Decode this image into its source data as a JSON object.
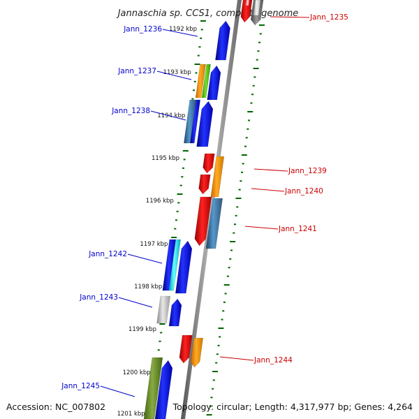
{
  "title": "Jannaschia sp. CCS1, complete genome",
  "footer": {
    "accession": "Accession: NC_007802",
    "summary": "Topology: circular; Length: 4,317,977 bp; Genes: 4,264"
  },
  "colors": {
    "forward_label": "#0000cc",
    "reverse_label": "#cc0000",
    "tick": "#006600",
    "backbone": "#888888"
  },
  "ticks": [
    {
      "kbp": 1192,
      "label": "1192 kbp"
    },
    {
      "kbp": 1193,
      "label": "1193 kbp"
    },
    {
      "kbp": 1194,
      "label": "1194 kbp"
    },
    {
      "kbp": 1195,
      "label": "1195 kbp"
    },
    {
      "kbp": 1196,
      "label": "1196 kbp"
    },
    {
      "kbp": 1197,
      "label": "1197 kbp"
    },
    {
      "kbp": 1198,
      "label": "1198 kbp"
    },
    {
      "kbp": 1199,
      "label": "1199 kbp"
    },
    {
      "kbp": 1200,
      "label": "1200 kbp"
    },
    {
      "kbp": 1201,
      "label": "1201 kbp"
    }
  ],
  "genes": [
    {
      "name": "Jann_1235",
      "strand": "reverse"
    },
    {
      "name": "Jann_1236",
      "strand": "forward"
    },
    {
      "name": "Jann_1237",
      "strand": "forward"
    },
    {
      "name": "Jann_1238",
      "strand": "forward"
    },
    {
      "name": "Jann_1239",
      "strand": "reverse"
    },
    {
      "name": "Jann_1240",
      "strand": "reverse"
    },
    {
      "name": "Jann_1241",
      "strand": "reverse"
    },
    {
      "name": "Jann_1242",
      "strand": "forward"
    },
    {
      "name": "Jann_1243",
      "strand": "forward"
    },
    {
      "name": "Jann_1244",
      "strand": "reverse"
    },
    {
      "name": "Jann_1245",
      "strand": "forward"
    }
  ]
}
